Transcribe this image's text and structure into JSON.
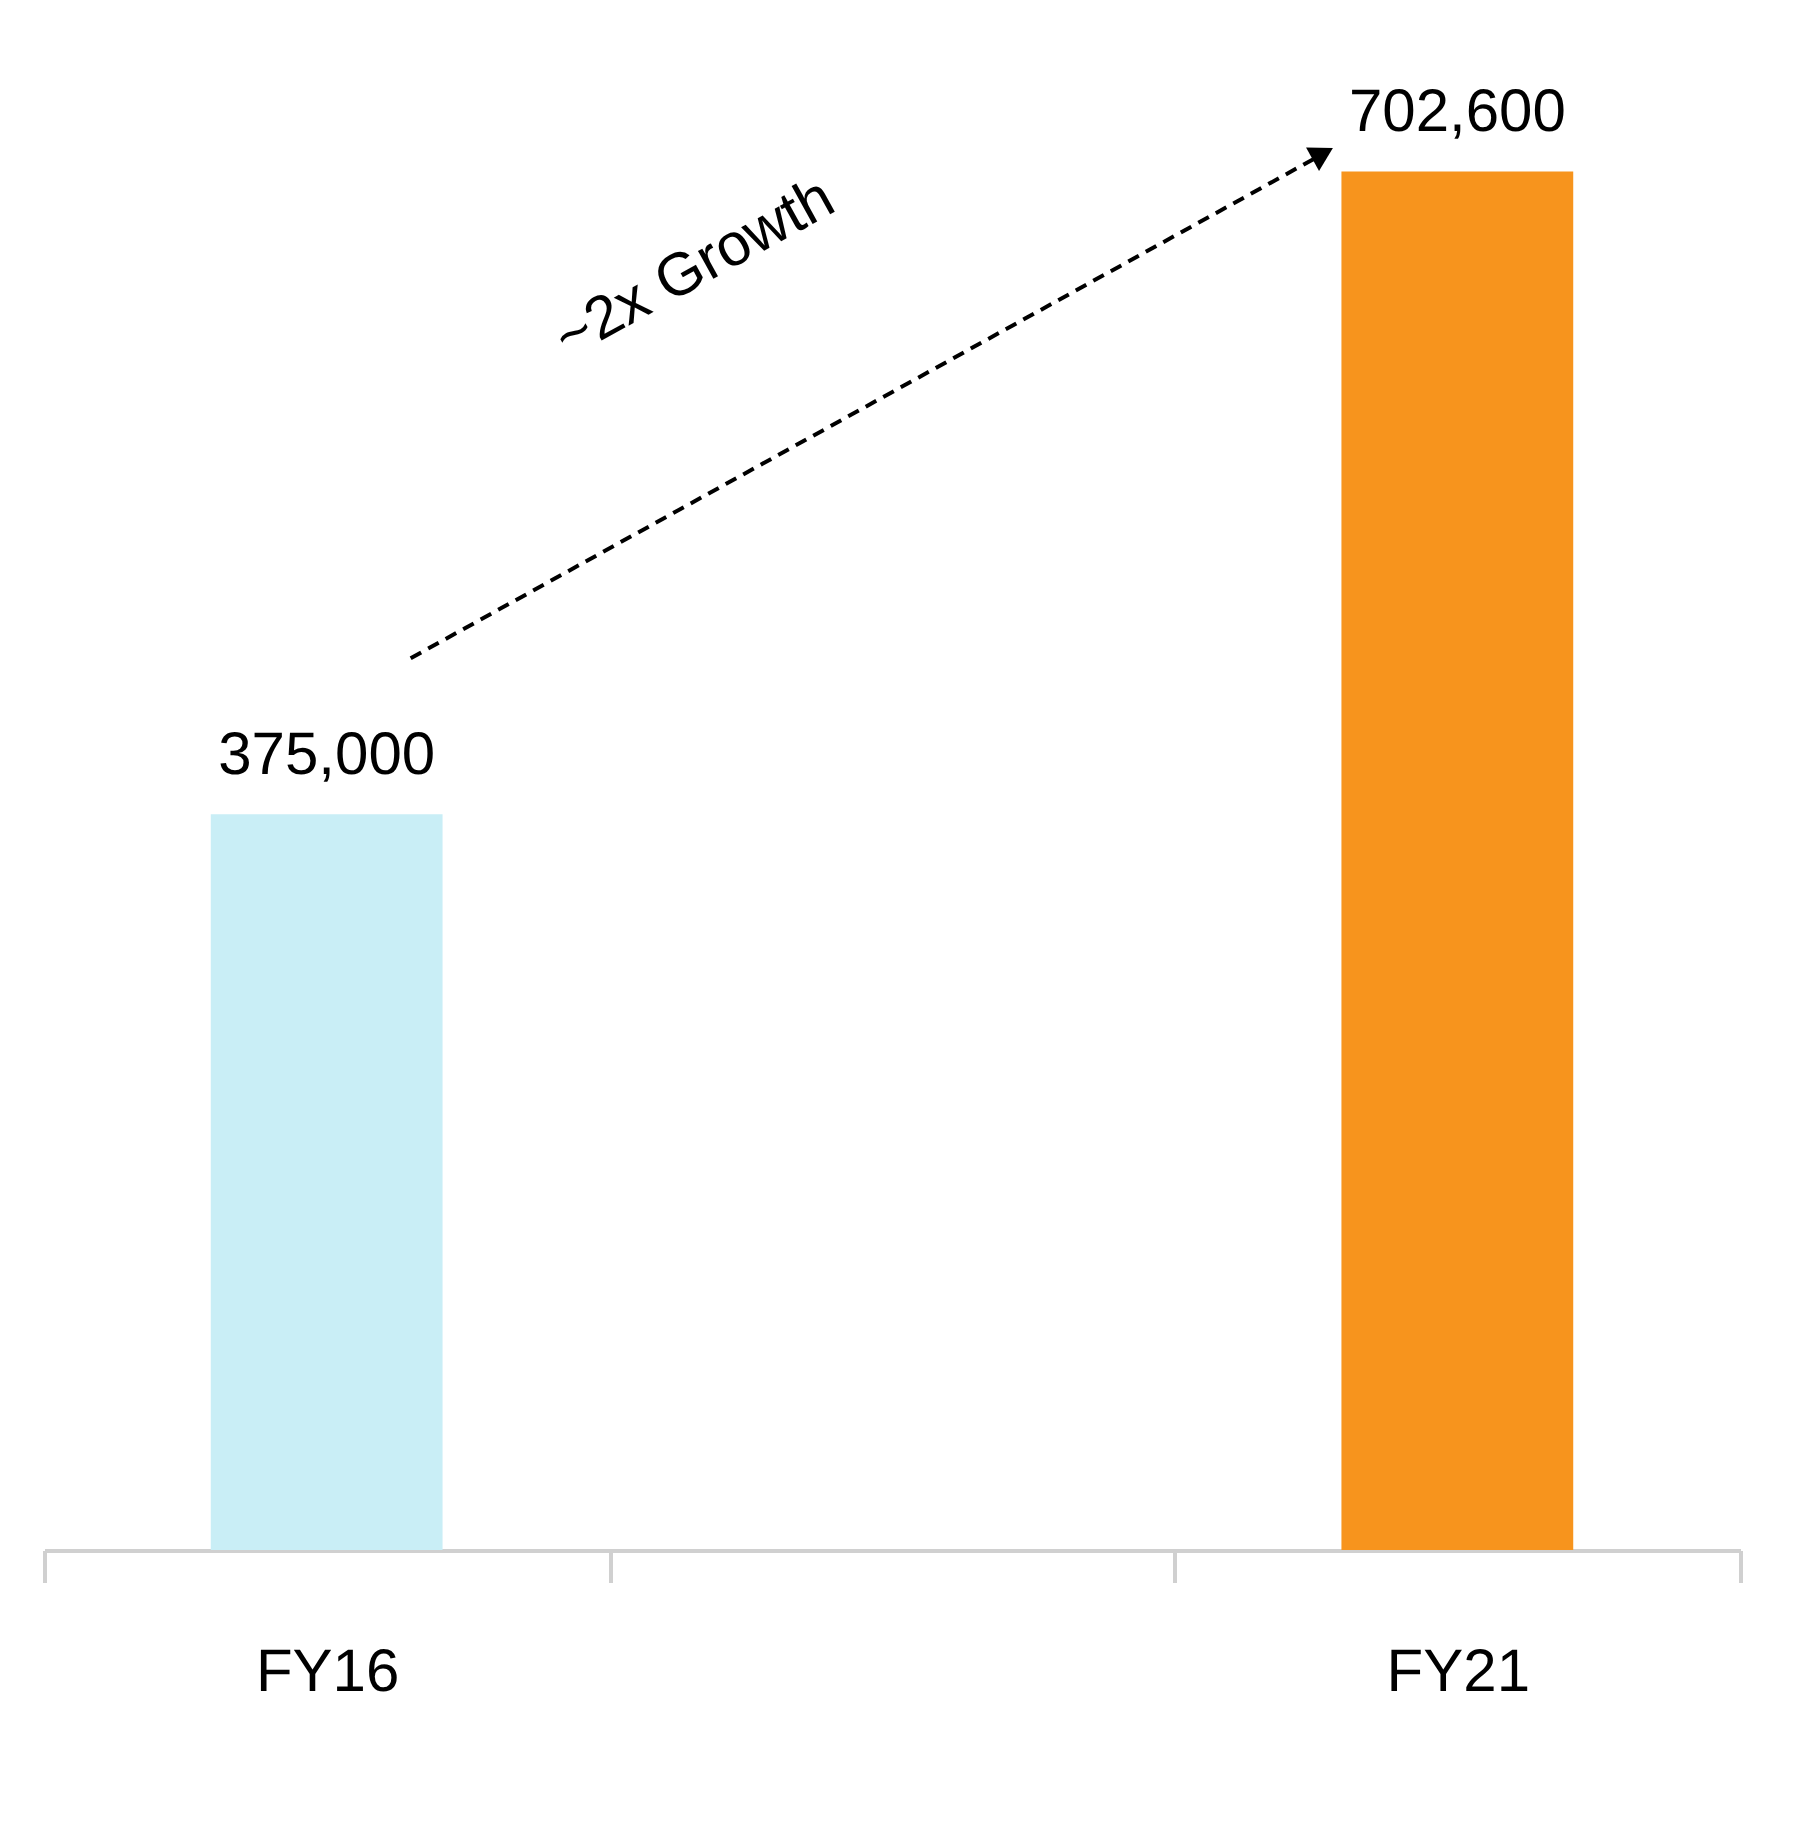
{
  "chart_data": {
    "type": "bar",
    "categories": [
      "FY16",
      null,
      "FY21"
    ],
    "values": [
      375000,
      null,
      702600
    ],
    "colors": [
      "#c9eef6",
      "#c9eef6",
      "#f7941d"
    ],
    "data_labels": true,
    "value_labels": [
      "375,000",
      null,
      "702,600"
    ],
    "ylim": [
      0,
      790000
    ],
    "tick_labels": "x",
    "grid": false,
    "annotations": [
      "~2x Growth"
    ]
  }
}
